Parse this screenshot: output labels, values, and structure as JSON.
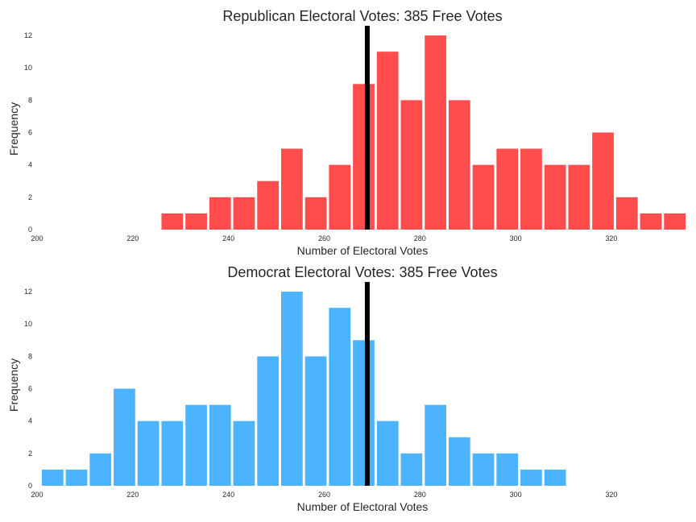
{
  "chart_data": [
    {
      "type": "bar",
      "title": "Republican Electoral Votes: 385 Free Votes",
      "xlabel": "Number of Electoral Votes",
      "ylabel": "Frequency",
      "xlim": [
        200,
        336
      ],
      "ylim": [
        0,
        12.6
      ],
      "xticks": [
        200,
        220,
        240,
        260,
        280,
        300,
        320
      ],
      "yticks": [
        0,
        2,
        4,
        6,
        8,
        10,
        12
      ],
      "bin_width": 5,
      "bar_color": "#ff4c4c",
      "reference_line": {
        "x": 269,
        "color": "#000000"
      },
      "bins": [
        {
          "x": 226,
          "count": 1
        },
        {
          "x": 231,
          "count": 1
        },
        {
          "x": 236,
          "count": 2
        },
        {
          "x": 241,
          "count": 2
        },
        {
          "x": 246,
          "count": 3
        },
        {
          "x": 251,
          "count": 5
        },
        {
          "x": 256,
          "count": 2
        },
        {
          "x": 261,
          "count": 4
        },
        {
          "x": 266,
          "count": 9
        },
        {
          "x": 271,
          "count": 11
        },
        {
          "x": 276,
          "count": 8
        },
        {
          "x": 281,
          "count": 12
        },
        {
          "x": 286,
          "count": 8
        },
        {
          "x": 291,
          "count": 4
        },
        {
          "x": 296,
          "count": 5
        },
        {
          "x": 301,
          "count": 5
        },
        {
          "x": 306,
          "count": 4
        },
        {
          "x": 311,
          "count": 4
        },
        {
          "x": 316,
          "count": 6
        },
        {
          "x": 321,
          "count": 2
        },
        {
          "x": 326,
          "count": 1
        },
        {
          "x": 331,
          "count": 1
        }
      ]
    },
    {
      "type": "bar",
      "title": "Democrat Electoral Votes: 385 Free Votes",
      "xlabel": "Number of Electoral Votes",
      "ylabel": "Frequency",
      "xlim": [
        200,
        336
      ],
      "ylim": [
        0,
        12.6
      ],
      "xticks": [
        200,
        220,
        240,
        260,
        280,
        300,
        320
      ],
      "yticks": [
        0,
        2,
        4,
        6,
        8,
        10,
        12
      ],
      "bin_width": 5,
      "bar_color": "#4cb4ff",
      "reference_line": {
        "x": 269,
        "color": "#000000"
      },
      "bins": [
        {
          "x": 201,
          "count": 1
        },
        {
          "x": 206,
          "count": 1
        },
        {
          "x": 211,
          "count": 2
        },
        {
          "x": 216,
          "count": 6
        },
        {
          "x": 221,
          "count": 4
        },
        {
          "x": 226,
          "count": 4
        },
        {
          "x": 231,
          "count": 5
        },
        {
          "x": 236,
          "count": 5
        },
        {
          "x": 241,
          "count": 4
        },
        {
          "x": 246,
          "count": 8
        },
        {
          "x": 251,
          "count": 12
        },
        {
          "x": 256,
          "count": 8
        },
        {
          "x": 261,
          "count": 11
        },
        {
          "x": 266,
          "count": 9
        },
        {
          "x": 271,
          "count": 4
        },
        {
          "x": 276,
          "count": 2
        },
        {
          "x": 281,
          "count": 5
        },
        {
          "x": 286,
          "count": 3
        },
        {
          "x": 291,
          "count": 2
        },
        {
          "x": 296,
          "count": 2
        },
        {
          "x": 301,
          "count": 1
        },
        {
          "x": 306,
          "count": 1
        }
      ]
    }
  ]
}
